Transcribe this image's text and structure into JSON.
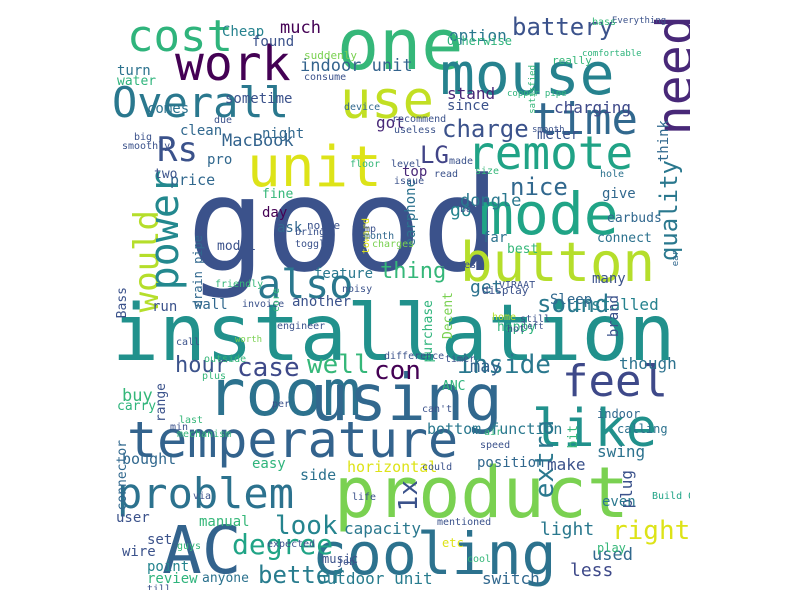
{
  "words": [
    {
      "t": "good",
      "c": "#3b528b"
    },
    {
      "t": "installation",
      "c": "#21918c"
    },
    {
      "t": "product",
      "c": "#7ad151"
    },
    {
      "t": "room",
      "c": "#2c728e"
    },
    {
      "t": "using",
      "c": "#31688e"
    },
    {
      "t": "temperature",
      "c": "#33638d"
    },
    {
      "t": "AC",
      "c": "#33638d"
    },
    {
      "t": "cooling",
      "c": "#2c728e"
    },
    {
      "t": "one",
      "c": "#35b779"
    },
    {
      "t": "mouse",
      "c": "#26828e"
    },
    {
      "t": "mode",
      "c": "#20a486"
    },
    {
      "t": "unit",
      "c": "#dde318"
    },
    {
      "t": "button",
      "c": "#b5de2b"
    },
    {
      "t": "like",
      "c": "#21918c"
    },
    {
      "t": "remote",
      "c": "#20a386"
    },
    {
      "t": "Overall",
      "c": "#2a788e"
    },
    {
      "t": "work",
      "c": "#440154"
    },
    {
      "t": "cost",
      "c": "#2fb47c"
    },
    {
      "t": "use",
      "c": "#c2df23"
    },
    {
      "t": "time",
      "c": "#31688e"
    },
    {
      "t": "need",
      "c": "#482878"
    },
    {
      "t": "would",
      "c": "#b5de2b"
    },
    {
      "t": "power",
      "c": "#23888e"
    },
    {
      "t": "problem",
      "c": "#2c728e"
    },
    {
      "t": "feel",
      "c": "#3e4989"
    },
    {
      "t": "also",
      "c": "#2a788e"
    },
    {
      "t": "Rs",
      "c": "#3b528b"
    },
    {
      "t": "battery",
      "c": "#3b528b"
    },
    {
      "t": "LG",
      "c": "#414487"
    },
    {
      "t": "charge",
      "c": "#3b528b"
    },
    {
      "t": "quality",
      "c": "#2a788e"
    },
    {
      "t": "case",
      "c": "#3e4989"
    },
    {
      "t": "well",
      "c": "#35b779"
    },
    {
      "t": "con",
      "c": "#440154"
    },
    {
      "t": "inside",
      "c": "#2a788e"
    },
    {
      "t": "degree",
      "c": "#20a486"
    },
    {
      "t": "right",
      "c": "#dde318"
    },
    {
      "t": "better",
      "c": "#287c8e"
    },
    {
      "t": "hour",
      "c": "#3b528b"
    },
    {
      "t": "sound",
      "c": "#2a788e"
    },
    {
      "t": "thing",
      "c": "#35b779"
    },
    {
      "t": "nice",
      "c": "#31688e"
    },
    {
      "t": "extra",
      "c": "#2a788e"
    },
    {
      "t": "look",
      "c": "#25848e"
    },
    {
      "t": "1x",
      "c": "#3b528b"
    },
    {
      "t": "indoor unit",
      "c": "#33638d"
    },
    {
      "t": "MacBook",
      "c": "#33638d"
    },
    {
      "t": "much",
      "c": "#440154"
    },
    {
      "t": "charging",
      "c": "#3e4989"
    },
    {
      "t": "stand",
      "c": "#482878"
    },
    {
      "t": "option",
      "c": "#2a788e"
    },
    {
      "t": "got",
      "c": "#482878"
    },
    {
      "t": "dongle",
      "c": "#2a788e"
    },
    {
      "t": "go",
      "c": "#25848e"
    },
    {
      "t": "get",
      "c": "#2c728e"
    },
    {
      "t": "installed",
      "c": "#26828e"
    },
    {
      "t": "may",
      "c": "#33638d"
    },
    {
      "t": "though",
      "c": "#2c728e"
    },
    {
      "t": "buy",
      "c": "#35b779"
    },
    {
      "t": "light",
      "c": "#2a788e"
    },
    {
      "t": "used",
      "c": "#31688e"
    },
    {
      "t": "less",
      "c": "#3e4989"
    },
    {
      "t": "capacity",
      "c": "#2a788e"
    },
    {
      "t": "outdoor unit",
      "c": "#287c8e"
    },
    {
      "t": "switch",
      "c": "#31688e"
    },
    {
      "t": "swing",
      "c": "#2c728e"
    },
    {
      "t": "make",
      "c": "#3b528b"
    },
    {
      "t": "plug",
      "c": "#3b528b"
    },
    {
      "t": "even",
      "c": "#2a788e"
    },
    {
      "t": "position",
      "c": "#31688e"
    },
    {
      "t": "bottom function",
      "c": "#2a788e"
    },
    {
      "t": "horizontal",
      "c": "#dde318"
    },
    {
      "t": "side",
      "c": "#2c728e"
    },
    {
      "t": "bought",
      "c": "#31688e"
    },
    {
      "t": "easy",
      "c": "#2fb47c"
    },
    {
      "t": "user",
      "c": "#3b528b"
    },
    {
      "t": "manual",
      "c": "#35b779"
    },
    {
      "t": "set",
      "c": "#3b528b"
    },
    {
      "t": "wire",
      "c": "#3b528b"
    },
    {
      "t": "point",
      "c": "#25848e"
    },
    {
      "t": "review",
      "c": "#2fb47c"
    },
    {
      "t": "anyone",
      "c": "#2c728e"
    },
    {
      "t": "music",
      "c": "#3b528b"
    },
    {
      "t": "play",
      "c": "#35b779"
    },
    {
      "t": "feature",
      "c": "#2a788e"
    },
    {
      "t": "another",
      "c": "#3b528b"
    },
    {
      "t": "wall",
      "c": "#31688e"
    },
    {
      "t": "run",
      "c": "#3b528b"
    },
    {
      "t": "price",
      "c": "#31688e"
    },
    {
      "t": "pro",
      "c": "#31688e"
    },
    {
      "t": "two",
      "c": "#3b528b"
    },
    {
      "t": "fine",
      "c": "#35b779"
    },
    {
      "t": "top",
      "c": "#482878"
    },
    {
      "t": "day",
      "c": "#440154"
    },
    {
      "t": "model",
      "c": "#3b528b"
    },
    {
      "t": "connect",
      "c": "#2c728e"
    },
    {
      "t": "many",
      "c": "#3b528b"
    },
    {
      "t": "best",
      "c": "#35b779"
    },
    {
      "t": "far",
      "c": "#2c728e"
    },
    {
      "t": "earbuds",
      "c": "#31688e"
    },
    {
      "t": "give",
      "c": "#31688e"
    },
    {
      "t": "think",
      "c": "#31688e"
    },
    {
      "t": "meter",
      "c": "#3b528b"
    },
    {
      "t": "since",
      "c": "#3b528b"
    },
    {
      "t": "sometime",
      "c": "#3b528b"
    },
    {
      "t": "comes",
      "c": "#2c728e"
    },
    {
      "t": "turn",
      "c": "#2c728e"
    },
    {
      "t": "water",
      "c": "#2fb47c"
    },
    {
      "t": "Cheap",
      "c": "#26828e"
    },
    {
      "t": "found",
      "c": "#3b528b"
    },
    {
      "t": "clean",
      "c": "#31688e"
    },
    {
      "t": "night",
      "c": "#31688e"
    },
    {
      "t": "ask",
      "c": "#31688e"
    },
    {
      "t": "Sleep",
      "c": "#31688e"
    },
    {
      "t": "brand",
      "c": "#3b528b"
    },
    {
      "t": "happy",
      "c": "#2fb47c"
    },
    {
      "t": "purchase",
      "c": "#2fb47c"
    },
    {
      "t": "Decent",
      "c": "#7ad151"
    },
    {
      "t": "earphone",
      "c": "#2c728e"
    },
    {
      "t": "range",
      "c": "#3b528b"
    },
    {
      "t": "carry",
      "c": "#2fb47c"
    },
    {
      "t": "bit",
      "c": "#35b779"
    },
    {
      "t": "calling",
      "c": "#2c728e"
    },
    {
      "t": "indoor",
      "c": "#31688e"
    },
    {
      "t": "ANC",
      "c": "#2fb47c"
    },
    {
      "t": "Bass",
      "c": "#3b528b"
    },
    {
      "t": "connector",
      "c": "#31688e"
    },
    {
      "t": "Otherwise",
      "c": "#2fb47c"
    },
    {
      "t": "noise",
      "c": "#3b528b"
    },
    {
      "t": "drain pipe",
      "c": "#31688e"
    },
    {
      "t": "display",
      "c": "#3b528b"
    },
    {
      "t": "home",
      "c": "#b5de2b"
    },
    {
      "t": "ear",
      "c": "#31688e"
    },
    {
      "t": "Build Quality",
      "c": "#20a486"
    },
    {
      "t": "copper pipe",
      "c": "#2fb47c"
    },
    {
      "t": "Everything",
      "c": "#3b528b"
    },
    {
      "t": "comfortable",
      "c": "#2fb47c"
    },
    {
      "t": "really",
      "c": "#35b779"
    },
    {
      "t": "suddenly",
      "c": "#7ad151"
    },
    {
      "t": "consume",
      "c": "#3b528b"
    },
    {
      "t": "satisfied",
      "c": "#35b779"
    },
    {
      "t": "device",
      "c": "#31688e"
    },
    {
      "t": "smooth",
      "c": "#3b528b"
    },
    {
      "t": "recommend",
      "c": "#3b528b"
    },
    {
      "t": "useless",
      "c": "#3b528b"
    },
    {
      "t": "floor",
      "c": "#35b779"
    },
    {
      "t": "level",
      "c": "#3b528b"
    },
    {
      "t": "size",
      "c": "#35b779"
    },
    {
      "t": "read",
      "c": "#3b528b"
    },
    {
      "t": "bad",
      "c": "#3b528b"
    },
    {
      "t": "hole",
      "c": "#2c728e"
    },
    {
      "t": "made",
      "c": "#3b528b"
    },
    {
      "t": "toward",
      "c": "#dde318"
    },
    {
      "t": "temp",
      "c": "#3b528b"
    },
    {
      "t": "month",
      "c": "#31688e"
    },
    {
      "t": "bring",
      "c": "#3b528b"
    },
    {
      "t": "toggle",
      "c": "#3b528b"
    },
    {
      "t": "Jeeves",
      "c": "#3b528b"
    },
    {
      "t": "noisy",
      "c": "#3b528b"
    },
    {
      "t": "VIRAAT",
      "c": "#3b528b"
    },
    {
      "t": "invoice",
      "c": "#3b528b"
    },
    {
      "t": "friendly",
      "c": "#35b779"
    },
    {
      "t": "core",
      "c": "#35b779"
    },
    {
      "t": "engineer",
      "c": "#3b528b"
    },
    {
      "t": "call",
      "c": "#3b528b"
    },
    {
      "t": "worth",
      "c": "#7ad151"
    },
    {
      "t": "outside",
      "c": "#35b779"
    },
    {
      "t": "plus",
      "c": "#35b779"
    },
    {
      "t": "difference",
      "c": "#3b528b"
    },
    {
      "t": "timer",
      "c": "#3b528b"
    },
    {
      "t": "can't",
      "c": "#3b528b"
    },
    {
      "t": "per",
      "c": "#3b528b"
    },
    {
      "t": "still",
      "c": "#3b528b"
    },
    {
      "t": "left",
      "c": "#3b528b"
    },
    {
      "t": "hot",
      "c": "#3b528b"
    },
    {
      "t": "air",
      "c": "#35b779"
    },
    {
      "t": "speed",
      "c": "#3b528b"
    },
    {
      "t": "could",
      "c": "#3b528b"
    },
    {
      "t": "mentioned",
      "c": "#3b528b"
    },
    {
      "t": "expected",
      "c": "#3b528b"
    },
    {
      "t": "life",
      "c": "#3b528b"
    },
    {
      "t": "job",
      "c": "#3b528b"
    },
    {
      "t": "cool",
      "c": "#35b779"
    },
    {
      "t": "etc",
      "c": "#dde318"
    },
    {
      "t": "via",
      "c": "#3b528b"
    },
    {
      "t": "guys",
      "c": "#35b779"
    },
    {
      "t": "till",
      "c": "#3b528b"
    },
    {
      "t": "min",
      "c": "#3b528b"
    },
    {
      "t": "mechanism",
      "c": "#35b779"
    },
    {
      "t": "last",
      "c": "#35b779"
    },
    {
      "t": "big",
      "c": "#3b528b"
    },
    {
      "t": "smoothly",
      "c": "#3b528b"
    },
    {
      "t": "due",
      "c": "#3b528b"
    },
    {
      "t": "issue",
      "c": "#3b528b"
    },
    {
      "t": "charges",
      "c": "#7ad151"
    },
    {
      "t": "bass",
      "c": "#35b779"
    }
  ]
}
